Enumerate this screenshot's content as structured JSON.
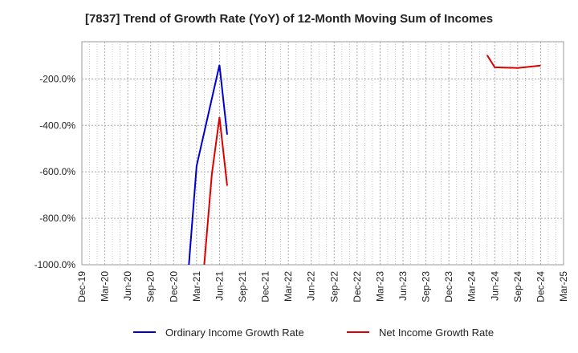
{
  "chart_data": {
    "type": "line",
    "title": "[7837]  Trend of Growth Rate (YoY) of 12-Month Moving Sum of Incomes",
    "xlabel": "",
    "ylabel": "",
    "x_ticks": [
      "Dec-19",
      "Mar-20",
      "Jun-20",
      "Sep-20",
      "Dec-20",
      "Mar-21",
      "Jun-21",
      "Sep-21",
      "Dec-21",
      "Mar-22",
      "Jun-22",
      "Sep-22",
      "Dec-22",
      "Mar-23",
      "Jun-23",
      "Sep-23",
      "Dec-23",
      "Mar-24",
      "Jun-24",
      "Sep-24",
      "Dec-24",
      "Mar-25"
    ],
    "y_ticks": [
      -200,
      -400,
      -600,
      -800,
      -1000
    ],
    "y_tick_labels": [
      "-200.0%",
      "-400.0%",
      "-600.0%",
      "-800.0%",
      "-1000.0%"
    ],
    "ylim": [
      -1000,
      -40
    ],
    "grid": true,
    "legend_position": "bottom",
    "series": [
      {
        "name": "Ordinary Income Growth Rate",
        "color": "#0000cc",
        "points": [
          {
            "x": "2021-02",
            "y": -1000
          },
          {
            "x": "2021-03",
            "y": -575
          },
          {
            "x": "2021-06",
            "y": -140
          },
          {
            "x": "2021-07",
            "y": -440
          }
        ]
      },
      {
        "name": "Net Income Growth Rate",
        "color": "#dd0000",
        "points": [
          {
            "x": "2021-04",
            "y": -1000
          },
          {
            "x": "2021-05",
            "y": -610
          },
          {
            "x": "2021-06",
            "y": -365
          },
          {
            "x": "2021-07",
            "y": -660
          },
          {
            "x": "2024-05",
            "y": -98
          },
          {
            "x": "2024-06",
            "y": -150
          },
          {
            "x": "2024-09",
            "y": -153
          },
          {
            "x": "2024-12",
            "y": -143
          },
          {
            "x": "2024-12",
            "y": -143
          }
        ],
        "segments": [
          [
            0,
            4
          ],
          [
            4,
            9
          ]
        ]
      }
    ]
  }
}
